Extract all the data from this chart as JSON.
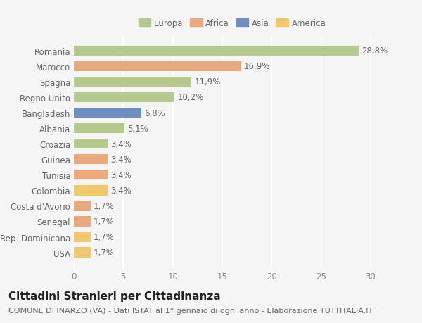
{
  "categories": [
    "Romania",
    "Marocco",
    "Spagna",
    "Regno Unito",
    "Bangladesh",
    "Albania",
    "Croazia",
    "Guinea",
    "Tunisia",
    "Colombia",
    "Costa d'Avorio",
    "Senegal",
    "Rep. Dominicana",
    "USA"
  ],
  "values": [
    28.8,
    16.9,
    11.9,
    10.2,
    6.8,
    5.1,
    3.4,
    3.4,
    3.4,
    3.4,
    1.7,
    1.7,
    1.7,
    1.7
  ],
  "labels": [
    "28,8%",
    "16,9%",
    "11,9%",
    "10,2%",
    "6,8%",
    "5,1%",
    "3,4%",
    "3,4%",
    "3,4%",
    "3,4%",
    "1,7%",
    "1,7%",
    "1,7%",
    "1,7%"
  ],
  "colors": [
    "#b5c98e",
    "#e8a97e",
    "#b5c98e",
    "#b5c98e",
    "#6f8fbf",
    "#b5c98e",
    "#b5c98e",
    "#e8a97e",
    "#e8a97e",
    "#f0c96e",
    "#e8a97e",
    "#e8a97e",
    "#f0c96e",
    "#f0c96e"
  ],
  "continent_colors": {
    "Europa": "#b5c98e",
    "Africa": "#e8a97e",
    "Asia": "#6f8fbf",
    "America": "#f0c96e"
  },
  "title": "Cittadini Stranieri per Cittadinanza",
  "subtitle": "COMUNE DI INARZO (VA) - Dati ISTAT al 1° gennaio di ogni anno - Elaborazione TUTTITALIA.IT",
  "xlim": [
    0,
    32
  ],
  "background_color": "#f5f5f5",
  "bar_height": 0.65,
  "grid_color": "#ffffff",
  "tick_color": "#888888",
  "label_fontsize": 8.5,
  "title_fontsize": 11,
  "subtitle_fontsize": 8
}
